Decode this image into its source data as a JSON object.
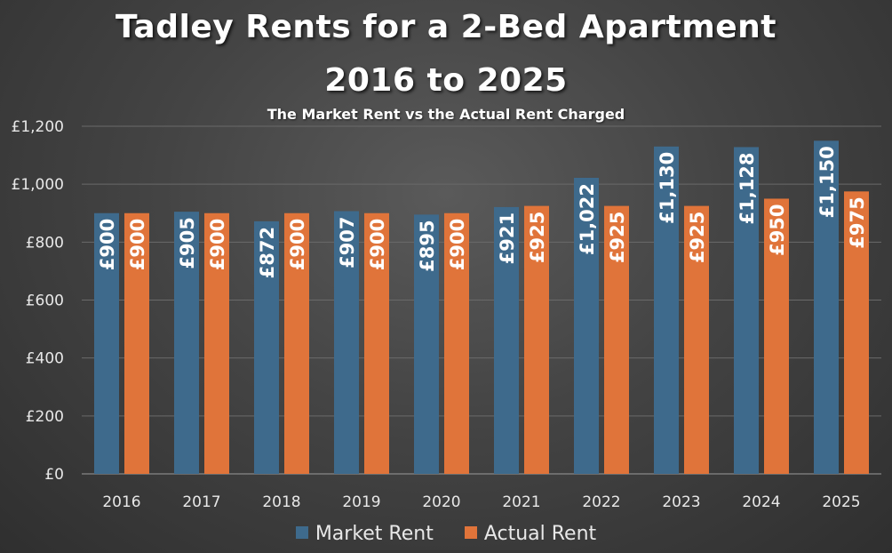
{
  "chart_data": {
    "type": "bar",
    "title_lines": [
      "Tadley Rents for a 2-Bed Apartment",
      "2016 to 2025"
    ],
    "subtitle": "The Market Rent vs the Actual Rent Charged",
    "xlabel": "",
    "ylabel": "",
    "categories": [
      "2016",
      "2017",
      "2018",
      "2019",
      "2020",
      "2021",
      "2022",
      "2023",
      "2024",
      "2025"
    ],
    "series": [
      {
        "name": "Market Rent",
        "color": "#3e6a8c",
        "values": [
          900,
          905,
          872,
          907,
          895,
          921,
          1022,
          1130,
          1128,
          1150
        ],
        "labels": [
          "£900",
          "£905",
          "£872",
          "£907",
          "£895",
          "£921",
          "£1,022",
          "£1,130",
          "£1,128",
          "£1,150"
        ]
      },
      {
        "name": "Actual Rent",
        "color": "#e0743a",
        "values": [
          900,
          900,
          900,
          900,
          900,
          925,
          925,
          925,
          950,
          975
        ],
        "labels": [
          "£900",
          "£900",
          "£900",
          "£900",
          "£900",
          "£925",
          "£925",
          "£925",
          "£950",
          "£975"
        ]
      }
    ],
    "ylim": [
      0,
      1200
    ],
    "yticks": [
      0,
      200,
      400,
      600,
      800,
      1000,
      1200
    ],
    "ytick_labels": [
      "£0",
      "£200",
      "£400",
      "£600",
      "£800",
      "£1,000",
      "£1,200"
    ],
    "grid": true,
    "legend_position": "bottom"
  }
}
